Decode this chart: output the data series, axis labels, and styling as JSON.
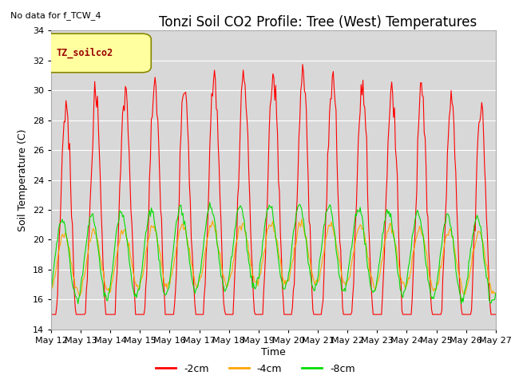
{
  "title": "Tonzi Soil CO2 Profile: Tree (West) Temperatures",
  "ylabel": "Soil Temperature (C)",
  "xlabel": "Time",
  "no_data_label": "No data for f_TCW_4",
  "legend_box_label": "TZ_soilco2",
  "ylim": [
    14,
    34
  ],
  "x_tick_labels": [
    "May 12",
    "May 13",
    "May 14",
    "May 15",
    "May 16",
    "May 17",
    "May 18",
    "May 19",
    "May 20",
    "May 21",
    "May 22",
    "May 23",
    "May 24",
    "May 25",
    "May 26",
    "May 27"
  ],
  "line_colors": {
    "neg2cm": "#ff0000",
    "neg4cm": "#ffa500",
    "neg8cm": "#00dd00"
  },
  "legend_labels": [
    "-2cm",
    "-4cm",
    "-8cm"
  ],
  "fig_bg_color": "#ffffff",
  "plot_bg_color": "#d8d8d8",
  "n_points": 480,
  "days": 15,
  "title_fontsize": 12,
  "axis_label_fontsize": 9,
  "tick_fontsize": 8
}
